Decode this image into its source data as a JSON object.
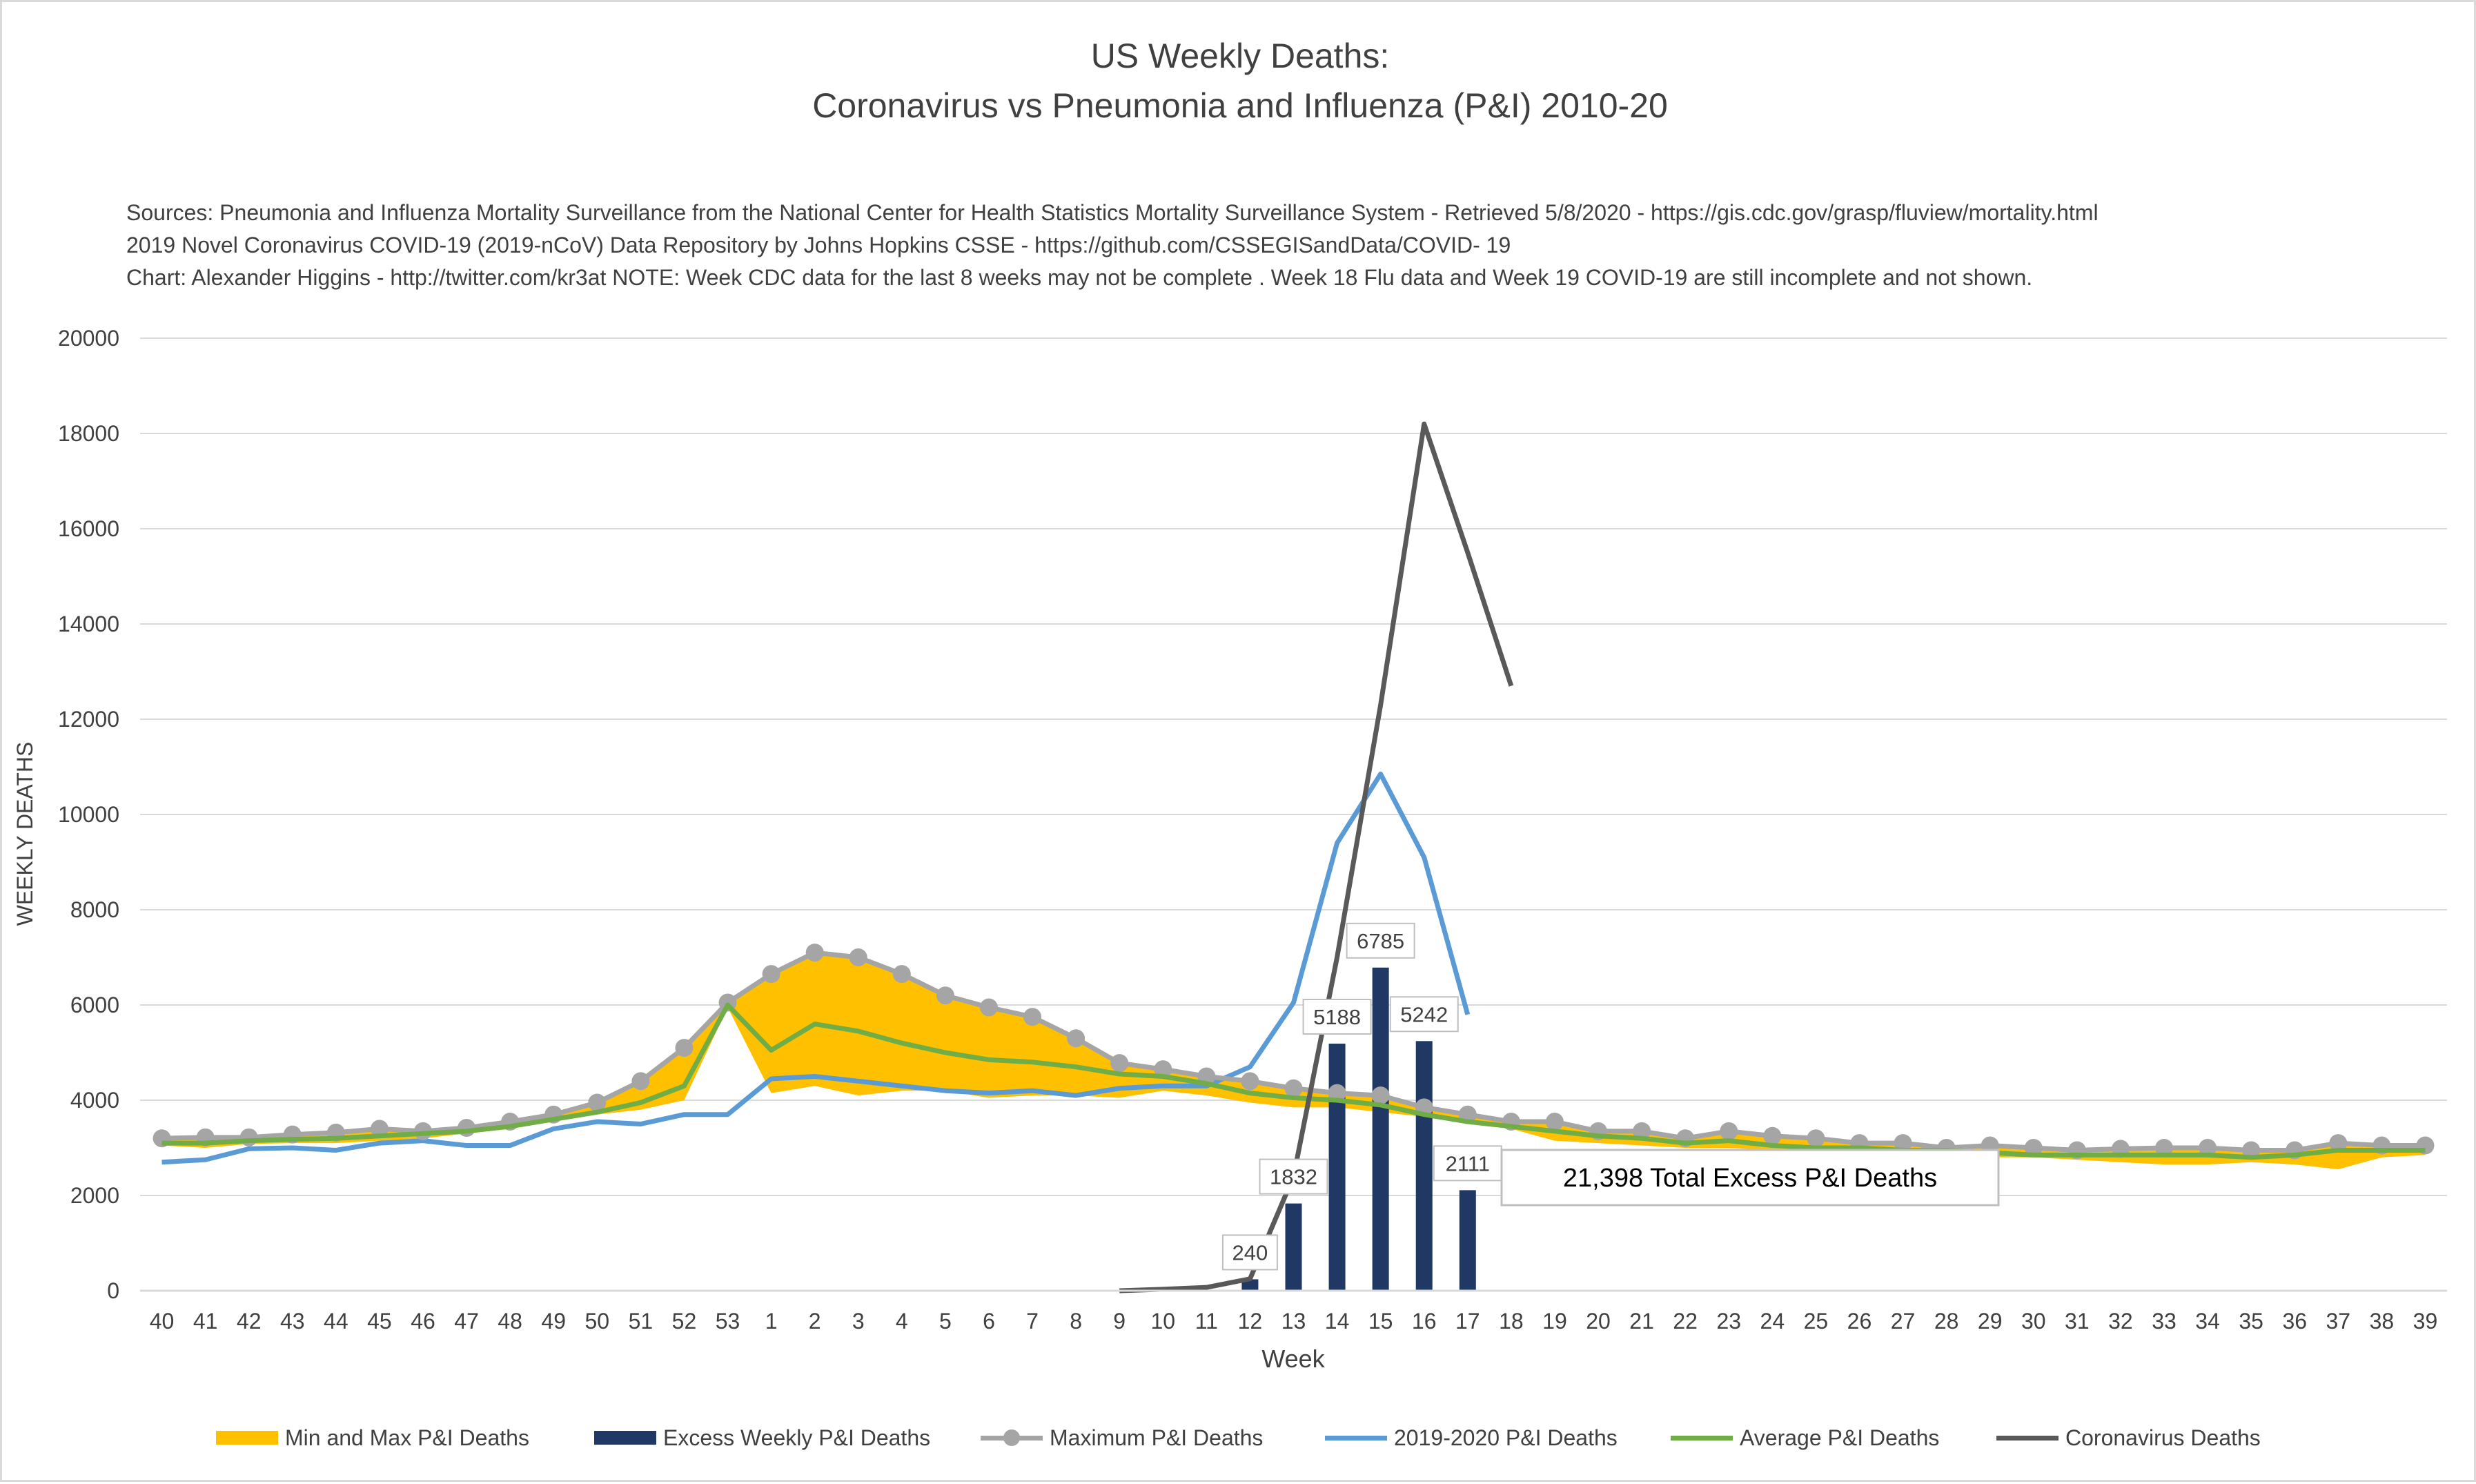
{
  "title_line1": "US Weekly Deaths:",
  "title_line2": "Coronavirus vs Pneumonia and Influenza (P&I) 2010-20",
  "sources": [
    "Sources: Pneumonia and Influenza Mortality Surveillance from the National Center for Health Statistics Mortality Surveillance System - Retrieved 5/8/2020 - https://gis.cdc.gov/grasp/fluview/mortality.html",
    "2019 Novel Coronavirus COVID-19 (2019-nCoV) Data Repository by Johns Hopkins CSSE - https://github.com/CSSEGISandData/COVID- 19",
    "Chart: Alexander Higgins - http://twitter.com/kr3at   NOTE: Week CDC data for the last 8 weeks may not be complete . Week 18 Flu data and Week 19 COVID-19 are still incomplete and not shown."
  ],
  "colors": {
    "min_max_fill": "#ffc000",
    "excess_bars": "#203864",
    "maximum_line": "#a5a5a5",
    "pi_2019_2020_line": "#5b9bd5",
    "average_line": "#70ad47",
    "coronavirus_line": "#595959",
    "gridline": "#d9d9d9",
    "text": "#404040"
  },
  "chart_data": {
    "type": "line",
    "title": "US Weekly Deaths: Coronavirus vs Pneumonia and Influenza (P&I) 2010-20",
    "xlabel": "Week",
    "ylabel": "WEEKLY DEATHS",
    "ylim": [
      0,
      20000
    ],
    "yticks": [
      0,
      2000,
      4000,
      6000,
      8000,
      10000,
      12000,
      14000,
      16000,
      18000,
      20000
    ],
    "grid": "horizontal",
    "legend_position": "bottom",
    "categories": [
      "40",
      "41",
      "42",
      "43",
      "44",
      "45",
      "46",
      "47",
      "48",
      "49",
      "50",
      "51",
      "52",
      "53",
      "1",
      "2",
      "3",
      "4",
      "5",
      "6",
      "7",
      "8",
      "9",
      "10",
      "11",
      "12",
      "13",
      "14",
      "15",
      "16",
      "17",
      "18",
      "19",
      "20",
      "21",
      "22",
      "23",
      "24",
      "25",
      "26",
      "27",
      "28",
      "29",
      "30",
      "31",
      "32",
      "33",
      "34",
      "35",
      "36",
      "37",
      "38",
      "39"
    ],
    "series": [
      {
        "name": "Min and Max P&I Deaths",
        "type": "area-band",
        "min": [
          3050,
          3000,
          3080,
          3100,
          3100,
          3150,
          3200,
          3300,
          3400,
          3550,
          3700,
          3800,
          4000,
          5950,
          4150,
          4300,
          4100,
          4200,
          4200,
          4050,
          4100,
          4100,
          4050,
          4200,
          4100,
          3950,
          3850,
          3850,
          3750,
          3650,
          3550,
          3400,
          3150,
          3100,
          3050,
          3000,
          3000,
          2950,
          2950,
          2900,
          2850,
          2850,
          2800,
          2800,
          2750,
          2700,
          2650,
          2650,
          2700,
          2650,
          2550,
          2800,
          2850
        ],
        "max": [
          3200,
          3220,
          3220,
          3280,
          3320,
          3400,
          3350,
          3420,
          3550,
          3700,
          3950,
          4400,
          5100,
          6050,
          6650,
          7100,
          7000,
          6650,
          6200,
          5950,
          5750,
          5300,
          4780,
          4650,
          4500,
          4400,
          4250,
          4150,
          4100,
          3850,
          3700,
          3550,
          3550,
          3350,
          3350,
          3200,
          3350,
          3250,
          3200,
          3100,
          3100,
          3000,
          3050,
          3000,
          2950,
          2980,
          3000,
          3000,
          2950,
          2950,
          3100,
          3050,
          3050
        ]
      },
      {
        "name": "Excess Weekly P&I Deaths",
        "type": "bar",
        "values": [
          null,
          null,
          null,
          null,
          null,
          null,
          null,
          null,
          null,
          null,
          null,
          null,
          null,
          null,
          null,
          null,
          null,
          null,
          null,
          null,
          null,
          null,
          null,
          null,
          null,
          240,
          1832,
          5188,
          6785,
          5242,
          2111,
          null,
          null,
          null,
          null,
          null,
          null,
          null,
          null,
          null,
          null,
          null,
          null,
          null,
          null,
          null,
          null,
          null,
          null,
          null,
          null,
          null,
          null
        ],
        "data_labels": [
          "240",
          "1832",
          "5188",
          "6785",
          "5242",
          "2111"
        ]
      },
      {
        "name": "Maximum P&I Deaths",
        "type": "line-markers",
        "values": [
          3200,
          3220,
          3220,
          3280,
          3320,
          3400,
          3350,
          3420,
          3550,
          3700,
          3950,
          4400,
          5100,
          6050,
          6650,
          7100,
          7000,
          6650,
          6200,
          5950,
          5750,
          5300,
          4780,
          4650,
          4500,
          4400,
          4250,
          4150,
          4100,
          3850,
          3700,
          3550,
          3550,
          3350,
          3350,
          3200,
          3350,
          3250,
          3200,
          3100,
          3100,
          3000,
          3050,
          3000,
          2950,
          2980,
          3000,
          3000,
          2950,
          2950,
          3100,
          3050,
          3050
        ]
      },
      {
        "name": "2019-2020 P&I Deaths",
        "type": "line",
        "values": [
          2700,
          2750,
          2980,
          3000,
          2950,
          3100,
          3150,
          3050,
          3050,
          3400,
          3550,
          3500,
          3700,
          3700,
          4450,
          4500,
          4400,
          4300,
          4200,
          4150,
          4200,
          4100,
          4250,
          4300,
          4300,
          4700,
          6050,
          9400,
          10850,
          9100,
          5800,
          null,
          null,
          null,
          null,
          null,
          null,
          null,
          null,
          null,
          null,
          null,
          null,
          null,
          null,
          null,
          null,
          null,
          null,
          null,
          null,
          null,
          null
        ]
      },
      {
        "name": "Average P&I Deaths",
        "type": "line",
        "values": [
          3100,
          3100,
          3150,
          3180,
          3200,
          3250,
          3300,
          3350,
          3450,
          3600,
          3750,
          3950,
          4300,
          6000,
          5050,
          5600,
          5450,
          5200,
          5000,
          4850,
          4800,
          4700,
          4550,
          4500,
          4350,
          4150,
          4050,
          4000,
          3900,
          3700,
          3550,
          3450,
          3350,
          3250,
          3200,
          3100,
          3150,
          3050,
          3000,
          3000,
          2950,
          2950,
          2900,
          2850,
          2850,
          2850,
          2850,
          2850,
          2800,
          2850,
          2950,
          2950,
          2950
        ]
      },
      {
        "name": "Coronavirus Deaths",
        "type": "line",
        "values": [
          null,
          null,
          null,
          null,
          null,
          null,
          null,
          null,
          null,
          null,
          null,
          null,
          null,
          null,
          null,
          null,
          null,
          null,
          null,
          null,
          null,
          null,
          0,
          30,
          70,
          250,
          2400,
          7000,
          12300,
          18200,
          15500,
          12700,
          null,
          null,
          null,
          null,
          null,
          null,
          null,
          null,
          null,
          null,
          null,
          null,
          null,
          null,
          null,
          null,
          null,
          null,
          null,
          null,
          null
        ]
      }
    ],
    "annotation": "21,398 Total Excess P&I Deaths"
  }
}
